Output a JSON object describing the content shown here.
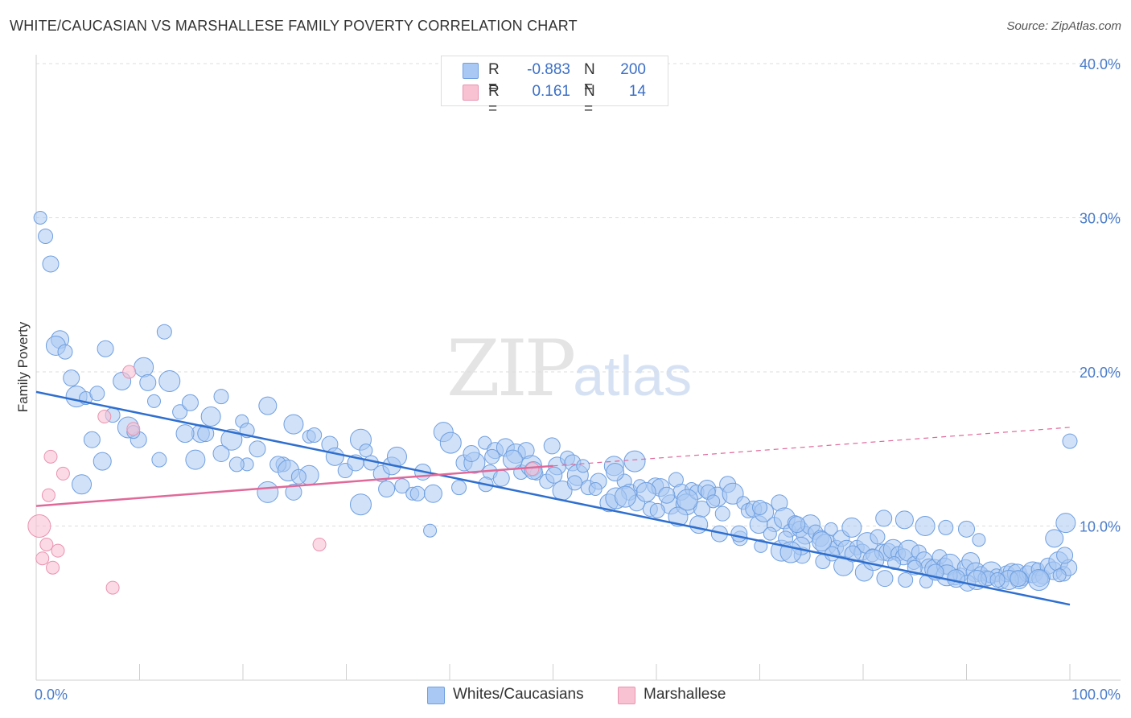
{
  "title": "WHITE/CAUCASIAN VS MARSHALLESE FAMILY POVERTY CORRELATION CHART",
  "source": "Source: ZipAtlas.com",
  "watermark": {
    "zip": "ZIP",
    "atlas": "atlas"
  },
  "legend": {
    "r_label": "R =",
    "n_label": "N =",
    "rows": [
      {
        "r": "-0.883",
        "n": "200",
        "color": "#a9c8f3",
        "border": "#6f9fe0"
      },
      {
        "r": "0.161",
        "n": "14",
        "color": "#f9c2d3",
        "border": "#e993b0"
      }
    ]
  },
  "bottom_legend": [
    {
      "label": "Whites/Caucasians",
      "color": "#a9c8f3",
      "border": "#6f9fe0"
    },
    {
      "label": "Marshallese",
      "color": "#f9c2d3",
      "border": "#e993b0"
    }
  ],
  "chart_data": {
    "type": "scatter",
    "title": "WHITE/CAUCASIAN VS MARSHALLESE FAMILY POVERTY CORRELATION CHART",
    "xlabel": "",
    "ylabel": "Family Poverty",
    "xlim": [
      0,
      100
    ],
    "ylim": [
      0,
      40
    ],
    "x_tick_labels": [
      {
        "value": 0,
        "label": "0.0%"
      },
      {
        "value": 100,
        "label": "100.0%"
      }
    ],
    "y_tick_labels": [
      {
        "value": 10,
        "label": "10.0%"
      },
      {
        "value": 20,
        "label": "20.0%"
      },
      {
        "value": 30,
        "label": "30.0%"
      },
      {
        "value": 40,
        "label": "40.0%"
      }
    ],
    "grid": true,
    "legend_position": "top-center",
    "series": [
      {
        "name": "Whites/Caucasians",
        "color": "#a9c8f3",
        "stroke": "#6f9fe0",
        "trend": {
          "x": [
            0,
            100
          ],
          "y": [
            18.7,
            4.9
          ],
          "color": "#2f6fcf"
        },
        "points": [
          [
            0.4,
            30
          ],
          [
            0.9,
            28.8
          ],
          [
            1.4,
            27
          ],
          [
            2.3,
            22.1
          ],
          [
            1.9,
            21.7
          ],
          [
            2.8,
            21.3
          ],
          [
            3.4,
            19.6
          ],
          [
            3.9,
            18.4
          ],
          [
            4.8,
            18.3
          ],
          [
            5.9,
            18.6
          ],
          [
            6.7,
            21.5
          ],
          [
            8.3,
            19.4
          ],
          [
            10.4,
            20.3
          ],
          [
            12.4,
            22.6
          ],
          [
            10.8,
            19.3
          ],
          [
            12.9,
            19.4
          ],
          [
            11.4,
            18.1
          ],
          [
            13.9,
            17.4
          ],
          [
            14.9,
            18
          ],
          [
            15.9,
            16
          ],
          [
            16.9,
            17.1
          ],
          [
            17.9,
            18.4
          ],
          [
            16.4,
            16
          ],
          [
            18.9,
            15.6
          ],
          [
            19.9,
            16.8
          ],
          [
            20.4,
            16.2
          ],
          [
            21.4,
            15
          ],
          [
            22.4,
            17.8
          ],
          [
            24.9,
            16.6
          ],
          [
            23.9,
            14
          ],
          [
            23.4,
            14
          ],
          [
            24.4,
            13.6
          ],
          [
            26.4,
            15.8
          ],
          [
            26.9,
            15.9
          ],
          [
            28.4,
            15.3
          ],
          [
            28.9,
            14.5
          ],
          [
            26.4,
            13.3
          ],
          [
            25.4,
            13.2
          ],
          [
            24.9,
            12.2
          ],
          [
            22.4,
            12.2
          ],
          [
            20.4,
            14
          ],
          [
            19.4,
            14
          ],
          [
            17.9,
            14.7
          ],
          [
            14.4,
            16
          ],
          [
            15.4,
            14.3
          ],
          [
            11.9,
            14.3
          ],
          [
            9.9,
            15.6
          ],
          [
            8.9,
            16.4
          ],
          [
            9.4,
            16.1
          ],
          [
            7.4,
            17.2
          ],
          [
            5.4,
            15.6
          ],
          [
            6.4,
            14.2
          ],
          [
            4.4,
            12.7
          ],
          [
            29.9,
            13.6
          ],
          [
            30.9,
            14.1
          ],
          [
            31.4,
            15.6
          ],
          [
            31.9,
            14.9
          ],
          [
            32.4,
            14.1
          ],
          [
            33.4,
            13.4
          ],
          [
            34.4,
            13.9
          ],
          [
            34.9,
            14.5
          ],
          [
            35.4,
            12.6
          ],
          [
            33.9,
            12.4
          ],
          [
            31.4,
            11.4
          ],
          [
            36.4,
            12.1
          ],
          [
            36.9,
            12.1
          ],
          [
            37.4,
            13.5
          ],
          [
            38.4,
            12.1
          ],
          [
            39.4,
            16.1
          ],
          [
            40.9,
            12.5
          ],
          [
            41.4,
            14.1
          ],
          [
            42.4,
            14.1
          ],
          [
            43.4,
            15.4
          ],
          [
            43.9,
            13.5
          ],
          [
            44.4,
            14.9
          ],
          [
            45.4,
            15.1
          ],
          [
            46.4,
            14.7
          ],
          [
            46.9,
            13.5
          ],
          [
            47.4,
            14.9
          ],
          [
            47.9,
            13.9
          ],
          [
            48.4,
            13.4
          ],
          [
            49.4,
            12.9
          ],
          [
            49.9,
            15.2
          ],
          [
            50.4,
            13.9
          ],
          [
            50.9,
            12.3
          ],
          [
            51.4,
            14.4
          ],
          [
            51.9,
            14.1
          ],
          [
            52.4,
            13.3
          ],
          [
            52.9,
            13.9
          ],
          [
            53.4,
            12.5
          ],
          [
            54.4,
            12.9
          ],
          [
            55.4,
            11.5
          ],
          [
            55.9,
            13.9
          ],
          [
            56.9,
            12.9
          ],
          [
            57.4,
            12.2
          ],
          [
            57.9,
            14.2
          ],
          [
            58.4,
            12.6
          ],
          [
            59.4,
            11.1
          ],
          [
            59.9,
            12.6
          ],
          [
            60.4,
            12.5
          ],
          [
            61.4,
            11.4
          ],
          [
            61.9,
            13
          ],
          [
            62.4,
            12.2
          ],
          [
            62.9,
            11.4
          ],
          [
            63.4,
            12.4
          ],
          [
            63.9,
            12.2
          ],
          [
            64.4,
            11.1
          ],
          [
            64.9,
            12.4
          ],
          [
            65.9,
            11.9
          ],
          [
            66.4,
            10.8
          ],
          [
            66.9,
            12.7
          ],
          [
            67.4,
            12.1
          ],
          [
            68.4,
            11.5
          ],
          [
            68.9,
            11
          ],
          [
            69.4,
            11.1
          ],
          [
            69.9,
            10.1
          ],
          [
            70.4,
            10.9
          ],
          [
            71.4,
            10.1
          ],
          [
            71.9,
            11.5
          ],
          [
            72.4,
            10.5
          ],
          [
            72.9,
            9.7
          ],
          [
            73.4,
            10.2
          ],
          [
            73.9,
            9.8
          ],
          [
            74.4,
            9.4
          ],
          [
            74.9,
            10.1
          ],
          [
            75.4,
            9.6
          ],
          [
            75.9,
            9.2
          ],
          [
            76.4,
            8.8
          ],
          [
            76.9,
            9.8
          ],
          [
            77.4,
            8.6
          ],
          [
            77.9,
            9.2
          ],
          [
            78.4,
            8.5
          ],
          [
            78.9,
            9.9
          ],
          [
            79.4,
            8.6
          ],
          [
            79.9,
            8.3
          ],
          [
            80.4,
            8.9
          ],
          [
            80.9,
            8.1
          ],
          [
            81.4,
            9.3
          ],
          [
            81.9,
            8.3
          ],
          [
            82.4,
            8.3
          ],
          [
            82.9,
            8.5
          ],
          [
            83.4,
            8.2
          ],
          [
            83.9,
            8
          ],
          [
            84.4,
            8.4
          ],
          [
            84.9,
            7.6
          ],
          [
            85.4,
            8.3
          ],
          [
            85.9,
            7.8
          ],
          [
            86.4,
            7.3
          ],
          [
            86.9,
            7.2
          ],
          [
            87.4,
            8
          ],
          [
            87.9,
            7.4
          ],
          [
            88.4,
            7.5
          ],
          [
            88.9,
            6.6
          ],
          [
            89.4,
            6.8
          ],
          [
            89.9,
            7.3
          ],
          [
            90.4,
            7.7
          ],
          [
            90.9,
            7
          ],
          [
            91.4,
            6.9
          ],
          [
            91.9,
            6.6
          ],
          [
            92.4,
            7
          ],
          [
            92.9,
            6.8
          ],
          [
            93.4,
            6.4
          ],
          [
            93.9,
            6.9
          ],
          [
            94.4,
            7
          ],
          [
            94.9,
            6.9
          ],
          [
            95.4,
            6.6
          ],
          [
            95.9,
            6.9
          ],
          [
            96.4,
            7
          ],
          [
            96.9,
            7.2
          ],
          [
            97.4,
            6.7
          ],
          [
            97.9,
            7.4
          ],
          [
            98.4,
            7.1
          ],
          [
            98.9,
            7.7
          ],
          [
            99.4,
            6.9
          ],
          [
            99.9,
            7.3
          ],
          [
            100.4,
            7.2
          ],
          [
            100.9,
            7
          ],
          [
            101.4,
            8.1
          ],
          [
            97.1,
            6.6
          ],
          [
            95.1,
            6.5
          ],
          [
            94.1,
            6.5
          ],
          [
            92.1,
            6.6
          ],
          [
            90.1,
            6.3
          ],
          [
            88.1,
            6.8
          ],
          [
            86.1,
            6.4
          ],
          [
            84.1,
            6.5
          ],
          [
            82.1,
            6.6
          ],
          [
            80.1,
            7
          ],
          [
            78.1,
            7.4
          ],
          [
            76.1,
            7.7
          ],
          [
            74.1,
            8.1
          ],
          [
            72.1,
            8.4
          ],
          [
            70.1,
            8.7
          ],
          [
            68.1,
            9.2
          ],
          [
            66.1,
            9.5
          ],
          [
            64.1,
            10.1
          ],
          [
            62.1,
            10.6
          ],
          [
            60.1,
            11
          ],
          [
            58.1,
            11.5
          ],
          [
            56.1,
            11.8
          ],
          [
            54.1,
            12.4
          ],
          [
            52.1,
            12.8
          ],
          [
            50.1,
            13.3
          ],
          [
            48.1,
            13.6
          ],
          [
            46.1,
            14.3
          ],
          [
            44.1,
            14.5
          ],
          [
            42.1,
            14.7
          ],
          [
            40.1,
            15.4
          ],
          [
            38.1,
            9.7
          ],
          [
            43.5,
            12.7
          ],
          [
            45,
            13.1
          ],
          [
            56,
            13.5
          ],
          [
            59,
            12.2
          ],
          [
            65,
            12.2
          ],
          [
            61,
            12
          ],
          [
            63,
            11.7
          ],
          [
            65.5,
            11.6
          ],
          [
            70,
            11.2
          ],
          [
            82,
            10.5
          ],
          [
            84,
            10.4
          ],
          [
            86,
            10
          ],
          [
            88,
            9.9
          ],
          [
            90,
            9.8
          ],
          [
            57,
            11.9
          ],
          [
            71,
            9.5
          ],
          [
            72.5,
            9.2
          ],
          [
            73.6,
            10.1
          ],
          [
            74,
            8.7
          ],
          [
            76,
            9
          ],
          [
            77,
            8.2
          ],
          [
            79,
            8.2
          ],
          [
            81,
            7.8
          ],
          [
            83,
            7.6
          ],
          [
            85,
            7.3
          ],
          [
            87,
            7
          ],
          [
            89,
            6.6
          ],
          [
            91,
            6.5
          ],
          [
            93,
            6.5
          ],
          [
            95,
            6.6
          ],
          [
            97,
            6.5
          ],
          [
            99,
            6.8
          ],
          [
            100.5,
            7.8
          ],
          [
            99.5,
            8.1
          ],
          [
            98.5,
            9.2
          ],
          [
            99.6,
            10.2
          ],
          [
            100,
            15.5
          ],
          [
            68,
            9.5
          ],
          [
            73,
            8.3
          ],
          [
            91.2,
            9.1
          ]
        ],
        "sizes": "mixed"
      },
      {
        "name": "Marshallese",
        "color": "#f9c2d3",
        "stroke": "#e993b0",
        "trend": {
          "x": [
            0,
            50
          ],
          "y": [
            11.3,
            13.9
          ],
          "color": "#e0699a"
        },
        "trend_dashed": {
          "x": [
            50,
            100
          ],
          "y": [
            13.9,
            16.4
          ]
        },
        "points": [
          [
            0.3,
            10
          ],
          [
            0.6,
            7.9
          ],
          [
            1,
            8.8
          ],
          [
            1.2,
            12
          ],
          [
            1.4,
            14.5
          ],
          [
            1.6,
            7.3
          ],
          [
            2.1,
            8.4
          ],
          [
            2.6,
            13.4
          ],
          [
            6.6,
            17.1
          ],
          [
            7.4,
            6
          ],
          [
            9,
            20
          ],
          [
            9.4,
            16.3
          ],
          [
            27.4,
            8.8
          ],
          [
            48,
            13.7
          ]
        ]
      }
    ]
  }
}
